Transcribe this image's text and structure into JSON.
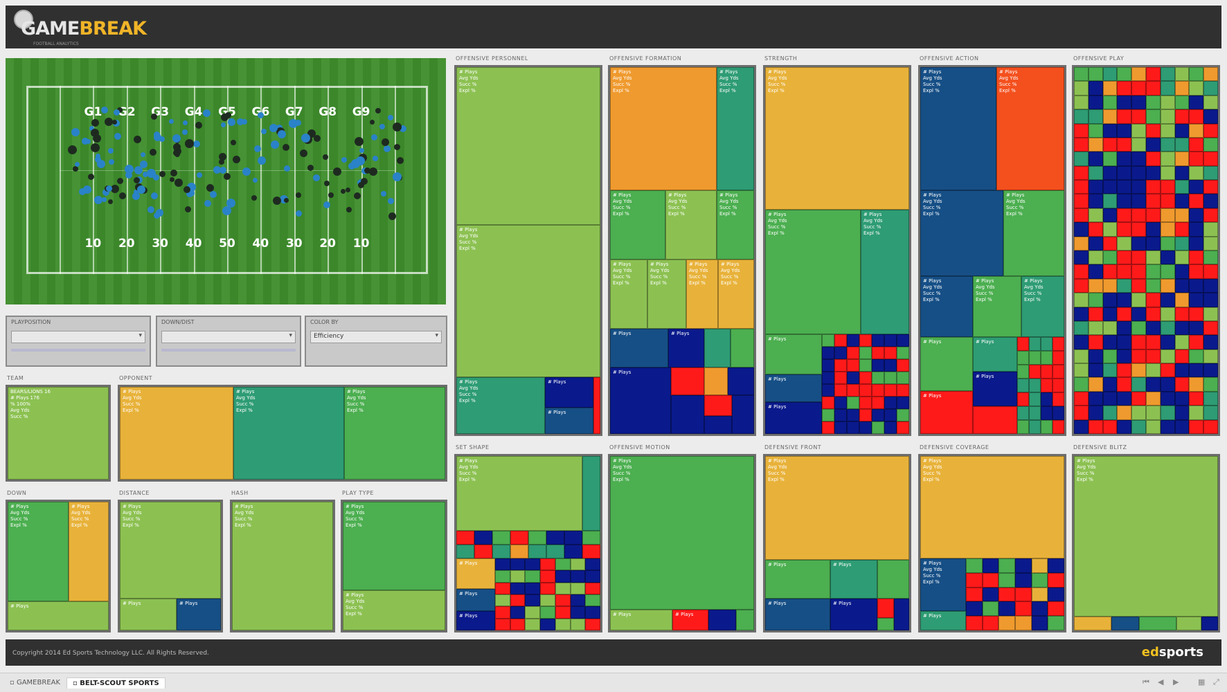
{
  "header": {
    "logo_left": "GAME",
    "logo_right": "BREAK",
    "logo_sub": "FOOTBALL ANALYTICS"
  },
  "field": {
    "top_numbers": [
      "G1",
      "G2",
      "G3",
      "G4",
      "G5",
      "G6",
      "G7",
      "G8",
      "G9"
    ],
    "bottom_numbers": [
      "10",
      "20",
      "30",
      "40",
      "50",
      "40",
      "30",
      "20",
      "10"
    ]
  },
  "filters": [
    {
      "label": "PLAYPOSITION",
      "value": ""
    },
    {
      "label": "DOWN/DIST",
      "value": ""
    },
    {
      "label": "COLOR BY",
      "value": "Efficiency"
    }
  ],
  "panel_labels": {
    "team": "TEAM",
    "opponent": "OPPONENT",
    "down": "DOWN",
    "distance": "DISTANCE",
    "hash": "HASH",
    "play_type": "PLAY TYPE",
    "personnel": "OFFENSIVE PERSONNEL",
    "formation": "OFFENSIVE FORMATION",
    "strength": "STRENGTH",
    "motion_action": "OFFENSIVE ACTION",
    "play": "OFFENSIVE PLAY",
    "set_shape": "SET SHAPE",
    "motion": "OFFENSIVE MOTION",
    "front": "DEFENSIVE FRONT",
    "coverage": "DEFENSIVE COVERAGE",
    "blitz": "DEFENSIVE BLITZ"
  },
  "cell_text": {
    "team": "BEARS/LIONS 16\n# Plays 176\n% 100%\nAvg Yds\nSucc %",
    "generic": "# Plays\nAvg Yds\nSucc %\nExpl %",
    "short": "# Plays"
  },
  "footer": {
    "copyright": "Copyright 2014 Ed Sports Technology LLC. All Rights Reserved.",
    "brand_left": "ed",
    "brand_right": "sports"
  },
  "tabs": [
    "GAMEBREAK",
    "BELT-SCOUT SPORTS"
  ],
  "colors": {
    "light_green": "#8cc152",
    "green": "#4caf50",
    "teal": "#2e9c74",
    "orange": "#ef9a2e",
    "yellow": "#e8b23a",
    "red_orange": "#f4501e",
    "navy": "#0a1a8c",
    "steel_blue": "#164f86",
    "red": "#ff1a1a"
  }
}
